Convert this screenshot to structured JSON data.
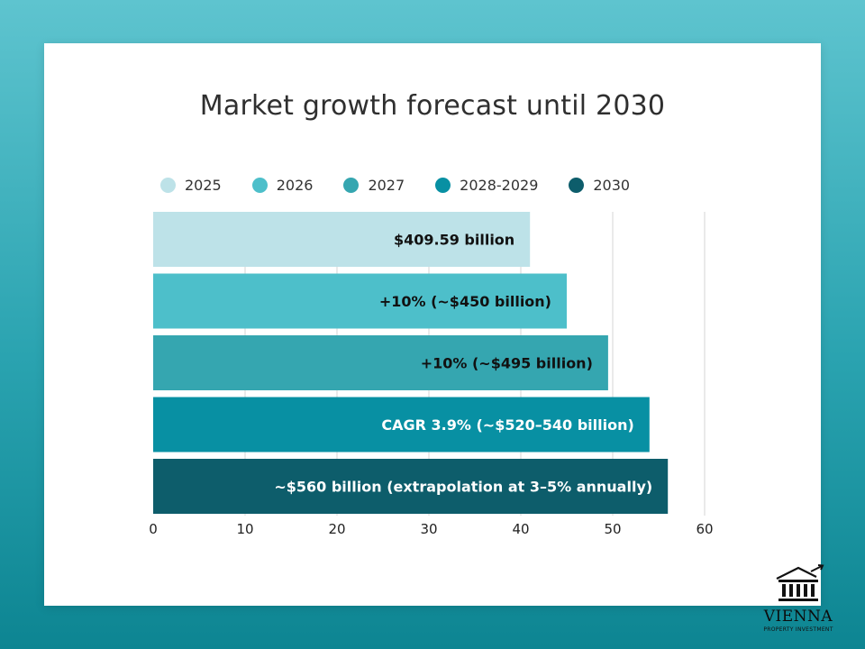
{
  "chart_data": {
    "type": "bar",
    "orientation": "horizontal",
    "title": "Market growth forecast until 2030",
    "categories": [
      "2025",
      "2026",
      "2027",
      "2028-2029",
      "2030"
    ],
    "values": [
      41,
      45,
      49.5,
      54,
      56
    ],
    "bar_labels": [
      "$409.59 billion",
      "+10% (~$450 billion)",
      "+10% (~$495 billion)",
      "CAGR 3.9% (~$520–540 billion)",
      "~$560 billion (extrapolation at 3–5% annually)"
    ],
    "colors": [
      "#bde2e8",
      "#4dbfca",
      "#35a6b0",
      "#0890a3",
      "#0d5d6b"
    ],
    "label_colors": [
      "#111111",
      "#111111",
      "#111111",
      "#ffffff",
      "#ffffff"
    ],
    "xlim": [
      0,
      60
    ],
    "xticks": [
      0,
      10,
      20,
      30,
      40,
      50,
      60
    ],
    "grid": true,
    "legend_position": "top"
  },
  "logo": {
    "name": "VIENNA",
    "subtitle": "PROPERTY INVESTMENT"
  }
}
